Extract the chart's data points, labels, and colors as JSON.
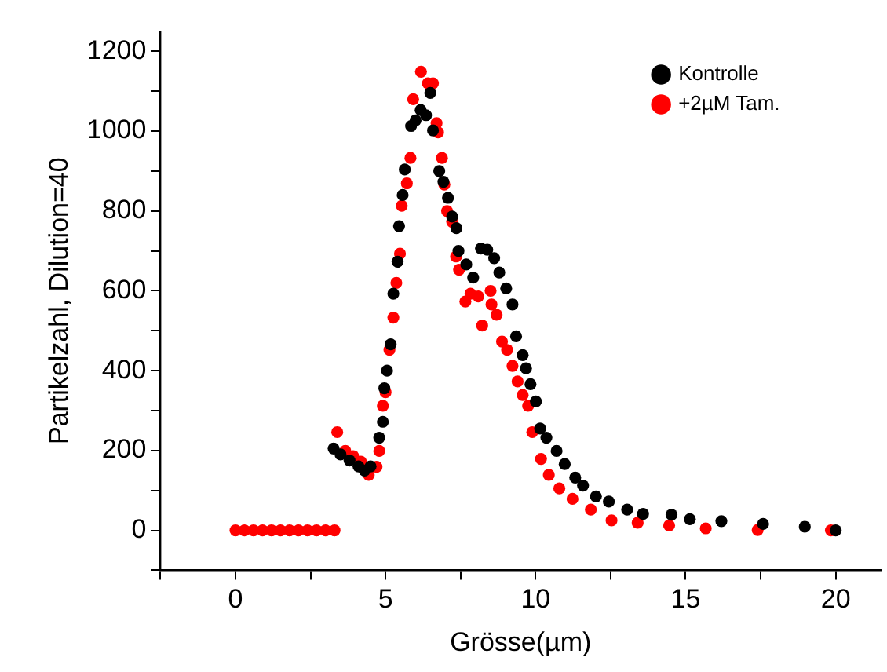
{
  "chart_data": {
    "type": "scatter",
    "xlabel": "Grösse(µm)",
    "ylabel": "Partikelzahl, Dilution=40",
    "xlim": [
      -2.5,
      21.5
    ],
    "ylim": [
      -100,
      1250
    ],
    "xticks": [
      {
        "value": -2.5,
        "label": null
      },
      0,
      {
        "value": 2.5,
        "label": null
      },
      5,
      {
        "value": 7.5,
        "label": null
      },
      10,
      {
        "value": 12.5,
        "label": null
      },
      15,
      {
        "value": 17.5,
        "label": null
      },
      20
    ],
    "yticks": [
      {
        "value": -100,
        "label": null
      },
      0,
      {
        "value": 100,
        "label": null
      },
      200,
      {
        "value": 300,
        "label": null
      },
      400,
      {
        "value": 500,
        "label": null
      },
      600,
      {
        "value": 700,
        "label": null
      },
      800,
      {
        "value": 900,
        "label": null
      },
      1000,
      {
        "value": 1100,
        "label": null
      },
      1200
    ],
    "grid": false,
    "legend": "top right",
    "marker": "circle",
    "series": [
      {
        "name": "Kontrolle",
        "color": "#000000",
        "x": [
          3.27,
          3.5,
          3.8,
          4.1,
          4.3,
          4.5,
          4.79,
          4.91,
          4.96,
          5.05,
          5.17,
          5.26,
          5.4,
          5.45,
          5.57,
          5.64,
          5.85,
          6.0,
          6.17,
          6.35,
          6.49,
          6.58,
          6.79,
          6.93,
          7.08,
          7.22,
          7.36,
          7.43,
          7.69,
          7.92,
          8.18,
          8.39,
          8.62,
          8.79,
          9.02,
          9.23,
          9.35,
          9.57,
          9.68,
          9.83,
          10.01,
          10.15,
          10.36,
          10.7,
          10.97,
          11.32,
          11.58,
          12.01,
          12.44,
          13.05,
          13.58,
          14.53,
          15.14,
          16.19,
          17.58,
          18.97,
          19.84,
          20.0
        ],
        "values": [
          205,
          190,
          175,
          160,
          150,
          160,
          232,
          272,
          356,
          400,
          466,
          593,
          673,
          762,
          840,
          904,
          1013,
          1027,
          1053,
          1040,
          1096,
          1002,
          900,
          873,
          833,
          786,
          757,
          700,
          666,
          633,
          706,
          703,
          682,
          646,
          606,
          566,
          486,
          439,
          406,
          366,
          323,
          255,
          232,
          199,
          166,
          132,
          112,
          85,
          72,
          52,
          41,
          39,
          28,
          23,
          16,
          9,
          null,
          0
        ]
      },
      {
        "name": "+2µM Tam.",
        "color": "#ff0000",
        "x": [
          0,
          0.3,
          0.6,
          0.9,
          1.2,
          1.5,
          1.8,
          2.1,
          2.4,
          2.7,
          3.0,
          3.3,
          3.39,
          3.66,
          3.92,
          4.18,
          4.44,
          4.7,
          4.79,
          4.91,
          5.0,
          5.13,
          5.26,
          5.36,
          5.48,
          5.54,
          5.71,
          5.83,
          5.92,
          6.18,
          6.41,
          6.58,
          6.7,
          6.75,
          6.88,
          6.96,
          7.05,
          7.22,
          7.35,
          7.45,
          7.66,
          7.83,
          8.09,
          8.22,
          8.5,
          8.53,
          8.7,
          8.88,
          9.05,
          9.23,
          9.4,
          9.57,
          9.75,
          9.89,
          10.18,
          10.44,
          10.79,
          11.23,
          11.84,
          12.53,
          13.4,
          14.45,
          15.67,
          17.4,
          19.84
        ],
        "values": [
          0,
          0,
          0,
          0,
          0,
          0,
          0,
          0,
          0,
          0,
          0,
          0,
          246,
          199,
          186,
          172,
          139,
          159,
          199,
          312,
          346,
          452,
          533,
          620,
          693,
          813,
          869,
          933,
          1080,
          1149,
          1120,
          1120,
          1020,
          997,
          933,
          866,
          800,
          773,
          686,
          653,
          573,
          593,
          586,
          513,
          600,
          566,
          540,
          473,
          452,
          412,
          373,
          339,
          312,
          246,
          179,
          139,
          105,
          79,
          52,
          25,
          19,
          12,
          5,
          1,
          0
        ]
      }
    ]
  }
}
